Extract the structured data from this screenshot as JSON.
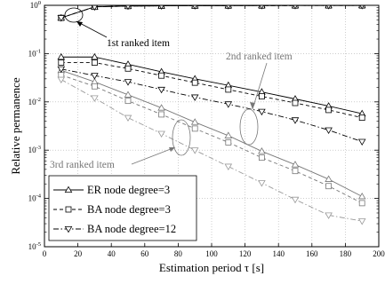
{
  "chart_data": {
    "type": "line",
    "title": "",
    "xlabel": "Estimation period τ [s]",
    "ylabel": "Relative permanence",
    "xlim": [
      0,
      200
    ],
    "ylim": [
      1e-05,
      1
    ],
    "yscale": "log",
    "grid": true,
    "legend_position": "bottom-left",
    "xticks": [
      "0",
      "20",
      "40",
      "60",
      "80",
      "100",
      "120",
      "140",
      "160",
      "180",
      "200"
    ],
    "yticks": [
      {
        "base": "10",
        "exp": "0",
        "value": 1
      },
      {
        "base": "10",
        "exp": "-1",
        "value": 0.1
      },
      {
        "base": "10",
        "exp": "-2",
        "value": 0.01
      },
      {
        "base": "10",
        "exp": "-3",
        "value": 0.001
      },
      {
        "base": "10",
        "exp": "-4",
        "value": 0.0001
      },
      {
        "base": "10",
        "exp": "-5",
        "value": 1e-05
      }
    ],
    "x": [
      10,
      30,
      50,
      70,
      90,
      110,
      130,
      150,
      170,
      190
    ],
    "series": [
      {
        "name": "ER node degree=3",
        "marker": "triangle-up",
        "dash": "solid",
        "color": "#000000",
        "group": "1st",
        "values": [
          0.55,
          0.93,
          0.965,
          0.975,
          0.98,
          0.985,
          0.988,
          0.99,
          0.992,
          0.993
        ]
      },
      {
        "name": "ER node degree=3",
        "marker": "triangle-up",
        "dash": "solid",
        "color": "#000000",
        "group": "2nd",
        "values": [
          0.085,
          0.085,
          0.06,
          0.042,
          0.03,
          0.022,
          0.016,
          0.0115,
          0.0082,
          0.0057
        ]
      },
      {
        "name": "ER node degree=3",
        "marker": "triangle-up",
        "dash": "solid",
        "color": "#777777",
        "group": "3rd",
        "values": [
          0.045,
          0.026,
          0.014,
          0.0075,
          0.0038,
          0.002,
          0.00095,
          0.0005,
          0.00025,
          0.00011
        ]
      },
      {
        "name": "BA node degree=3",
        "marker": "square",
        "dash": "dash",
        "color": "#000000",
        "group": "1st",
        "values": [
          0.55,
          0.93,
          0.965,
          0.975,
          0.98,
          0.985,
          0.988,
          0.99,
          0.992,
          0.993
        ]
      },
      {
        "name": "BA node degree=3",
        "marker": "square",
        "dash": "dash",
        "color": "#000000",
        "group": "2nd",
        "values": [
          0.065,
          0.065,
          0.049,
          0.035,
          0.025,
          0.018,
          0.013,
          0.0095,
          0.0068,
          0.0047
        ]
      },
      {
        "name": "BA node degree=3",
        "marker": "square",
        "dash": "dash",
        "color": "#777777",
        "group": "3rd",
        "values": [
          0.036,
          0.021,
          0.0105,
          0.0055,
          0.0028,
          0.00145,
          0.0007,
          0.00037,
          0.00018,
          8e-05
        ]
      },
      {
        "name": "BA node degree=12",
        "marker": "triangle-down",
        "dash": "dashdot",
        "color": "#000000",
        "group": "1st",
        "values": [
          0.55,
          0.93,
          0.965,
          0.975,
          0.98,
          0.985,
          0.988,
          0.99,
          0.992,
          0.993
        ]
      },
      {
        "name": "BA node degree=12",
        "marker": "triangle-down",
        "dash": "dashdot",
        "color": "#000000",
        "group": "2nd",
        "values": [
          0.048,
          0.035,
          0.026,
          0.018,
          0.0125,
          0.009,
          0.0063,
          0.0042,
          0.0026,
          0.0015
        ]
      },
      {
        "name": "BA node degree=12",
        "marker": "triangle-down",
        "dash": "dashdot",
        "color": "#999999",
        "group": "3rd",
        "values": [
          0.029,
          0.012,
          0.0047,
          0.0022,
          0.001,
          0.00046,
          0.00021,
          9.5e-05,
          4.5e-05,
          3.4e-05
        ]
      }
    ],
    "annotations": [
      {
        "text": "1st ranked item",
        "color": "#000000"
      },
      {
        "text": "2nd ranked item",
        "color": "#777777"
      },
      {
        "text": "3rd ranked item",
        "color": "#777777"
      }
    ],
    "legend": [
      {
        "label": "ER node degree=3",
        "marker": "triangle-up",
        "dash": "solid"
      },
      {
        "label": "BA node degree=3",
        "marker": "square",
        "dash": "dash"
      },
      {
        "label": "BA node degree=12",
        "marker": "triangle-down",
        "dash": "dashdot"
      }
    ]
  }
}
